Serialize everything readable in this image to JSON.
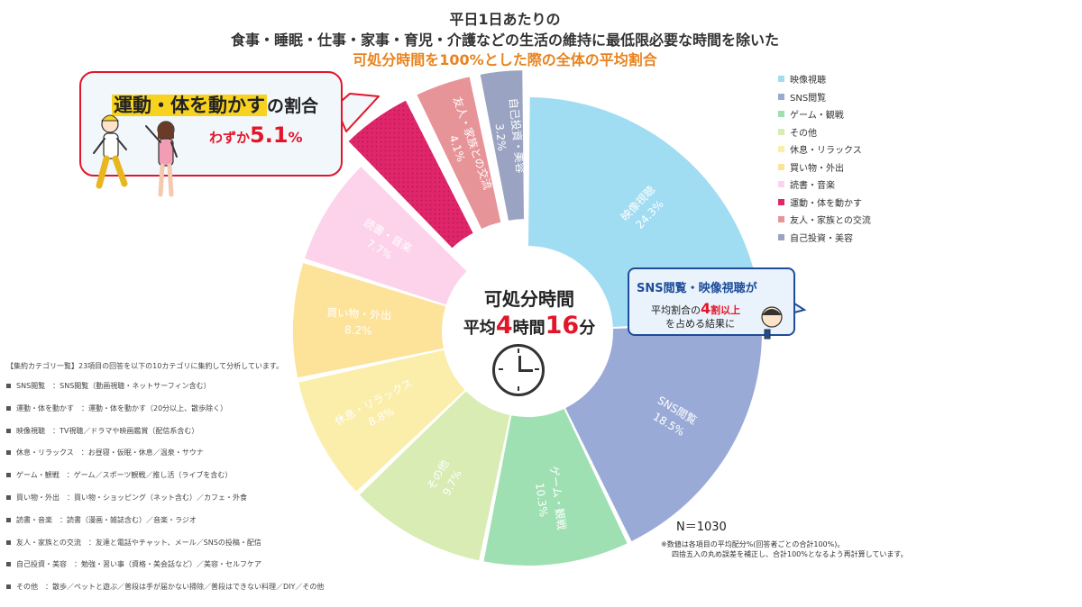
{
  "title": {
    "line1": "平日1日あたりの",
    "line2": "食事・睡眠・仕事・家事・育児・介護などの生活の維持に最低限必要な時間を除いた",
    "line3": "可処分時間を100%とした際の全体の平均割合"
  },
  "chart_data": {
    "type": "pie",
    "variant": "donut",
    "center": {
      "label": "可処分時間",
      "avg_prefix": "平均",
      "hours": "4",
      "hours_unit": "時間",
      "minutes": "16",
      "minutes_unit": "分"
    },
    "slices": [
      {
        "name": "映像視聴",
        "value": 24.3,
        "value_label": "24.3%",
        "color": "#a0dcf2",
        "label_color": "#ffffff",
        "exploded": false
      },
      {
        "name": "SNS閲覧",
        "value": 18.5,
        "value_label": "18.5%",
        "color": "#9aaad6",
        "label_color": "#ffffff",
        "exploded": false
      },
      {
        "name": "ゲーム・観戦",
        "value": 10.3,
        "value_label": "10.3%",
        "color": "#9ee0b2",
        "label_color": "#ffffff",
        "exploded": false
      },
      {
        "name": "その他",
        "value": 9.7,
        "value_label": "9.7%",
        "color": "#d8ecb4",
        "label_color": "#ffffff",
        "exploded": false
      },
      {
        "name": "休息・リラックス",
        "value": 8.8,
        "value_label": "8.8%",
        "color": "#fbeeaa",
        "label_color": "#ffffff",
        "exploded": false
      },
      {
        "name": "買い物・外出",
        "value": 8.2,
        "value_label": "8.2%",
        "color": "#fde299",
        "label_color": "#ffffff",
        "exploded": false
      },
      {
        "name": "読書・音楽",
        "value": 7.7,
        "value_label": "7.7%",
        "color": "#fcd3ea",
        "label_color": "#ffffff",
        "exploded": false
      },
      {
        "name": "運動・体を動かす",
        "value": 5.1,
        "value_label": "",
        "color": "#e0266a",
        "label_color": "#ffffff",
        "exploded": true
      },
      {
        "name": "友人・家族との交流",
        "value": 4.1,
        "value_label": "4.1%",
        "color": "#e79499",
        "label_color": "#ffffff",
        "exploded": true
      },
      {
        "name": "自己投資・美容",
        "value": 3.2,
        "value_label": "3.2%",
        "color": "#9aa4c2",
        "label_color": "#ffffff",
        "exploded": true
      }
    ],
    "legend_position": "right"
  },
  "callout_exercise": {
    "highlight": "運動・体を動かす",
    "suffix": "の割合",
    "prefix": "わずか",
    "value": "5.1",
    "unit": "%"
  },
  "callout_sns": {
    "line1": "SNS閲覧・映像視聴が",
    "line2_prefix": "平均割合の",
    "line2_big": "4",
    "line2_red": "割以上",
    "line3": "を占める結果に"
  },
  "n_label": "N＝1030",
  "notes": {
    "line1": "※数値は各項目の平均配分%(回答者ごとの合計100%)。",
    "line2": "四捨五入の丸め誤差を補正し、合計100%となるよう再計算しています。"
  },
  "categories": {
    "title": "【集約カテゴリ一覧】23項目の回答を以下の10カテゴリに集約して分析しています。",
    "rows": [
      "SNS閲覧　：SNS閲覧（動画視聴・ネットサーフィン含む）",
      "運動・体を動かす　：運動・体を動かす（20分以上、散歩除く）",
      "映像視聴　：TV視聴／ドラマや映画鑑賞（配信系含む）",
      "休息・リラックス　：お昼寝・仮眠・休息／温泉・サウナ",
      "ゲーム・観戦　：ゲーム／スポーツ観戦／推し活（ライブを含む）",
      "買い物・外出　：買い物・ショッピング（ネット含む）／カフェ・外食",
      "読書・音楽　：読書（漫画・雑誌含む）／音楽・ラジオ",
      "友人・家族との交流　：友達と電話やチャット、メール／SNSの投稿・配信",
      "自己投資・美容　：勉強・習い事（資格・美会話など）／美容・セルフケア",
      "その他　：散歩／ペットと遊ぶ／普段は手が届かない掃除／普段はできない料理／DIY／その他"
    ]
  }
}
